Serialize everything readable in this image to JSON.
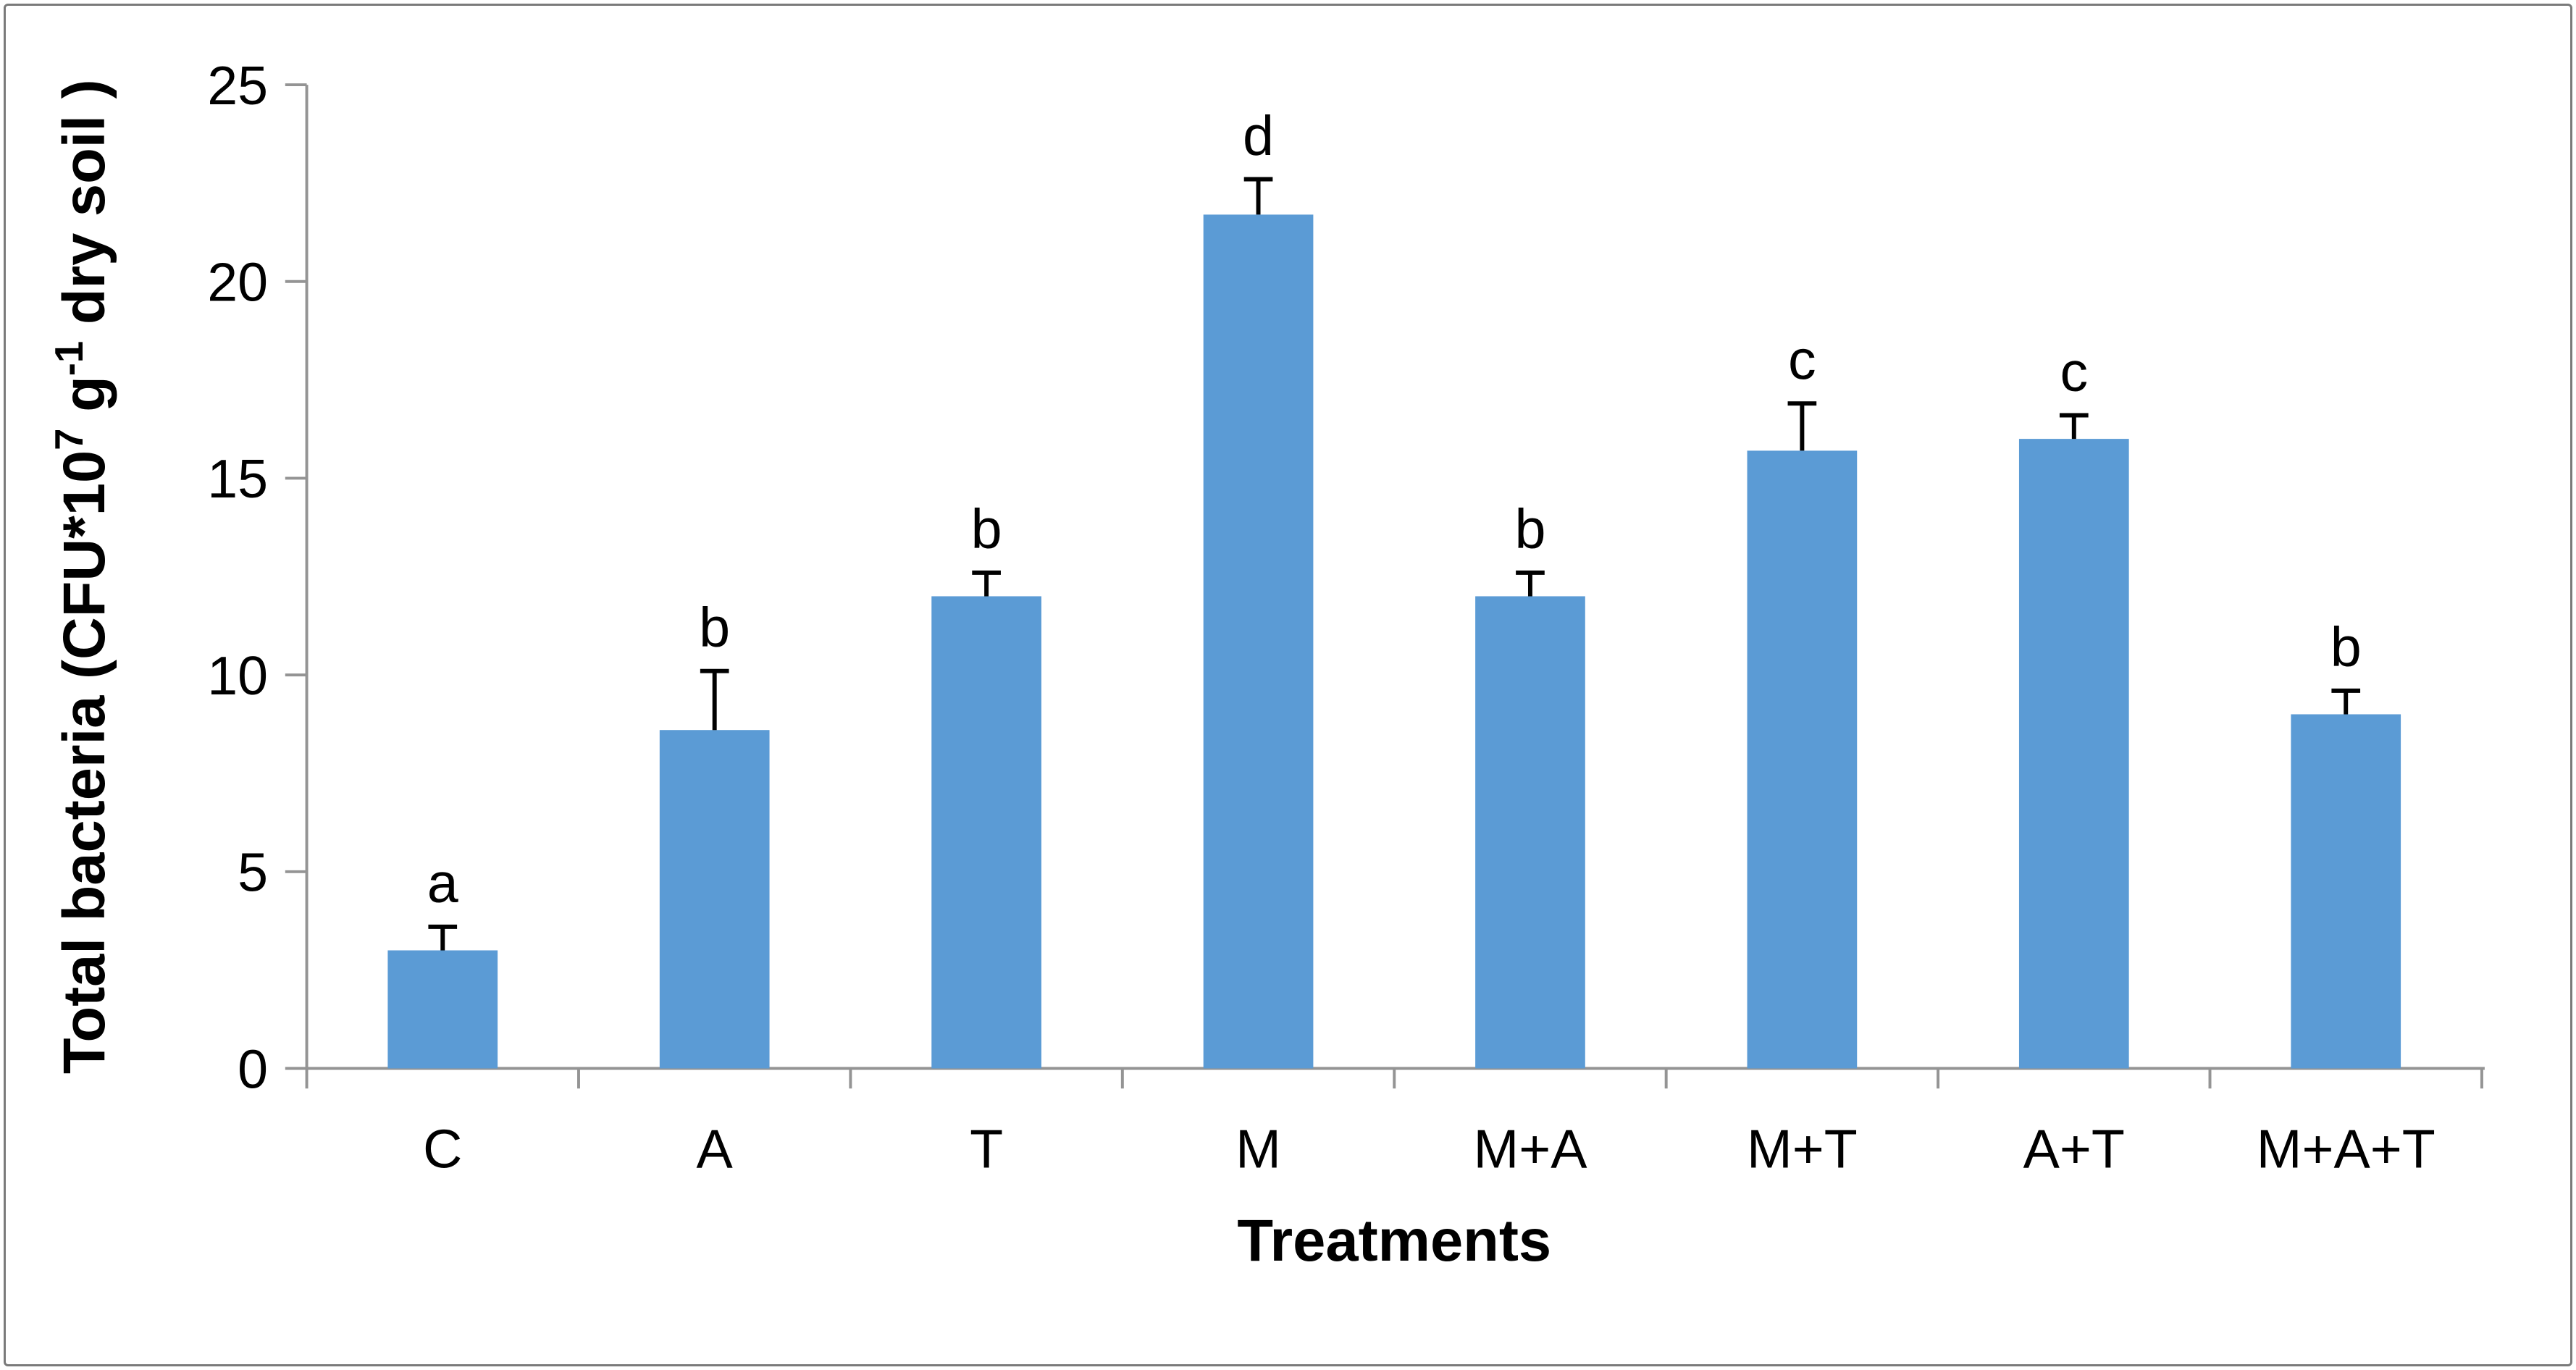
{
  "figure": {
    "background": "#ffffff",
    "border_color": "#7a7a7a"
  },
  "chart_data": {
    "type": "bar",
    "title": "",
    "categories": [
      "C",
      "A",
      "T",
      "M",
      "M+A",
      "M+T",
      "A+T",
      "M+A+T"
    ],
    "values": [
      3.0,
      8.6,
      12.0,
      21.7,
      12.0,
      15.7,
      16.0,
      9.0
    ],
    "errors_plus": [
      0.6,
      1.5,
      0.6,
      0.9,
      0.6,
      1.2,
      0.6,
      0.6
    ],
    "sig_letters": [
      "a",
      "b",
      "b",
      "d",
      "b",
      "c",
      "c",
      "b"
    ],
    "xlabel": "Treatments",
    "ylabel": "Total bacteria (CFU*10⁷ g⁻¹ dry soil )",
    "ylabel_parts": [
      {
        "t": "Total bacteria (CFU*10",
        "sup": false
      },
      {
        "t": "7",
        "sup": true
      },
      {
        "t": " g",
        "sup": false
      },
      {
        "t": "-1",
        "sup": true
      },
      {
        "t": " dry soil )",
        "sup": false
      }
    ],
    "ylim": [
      0,
      25
    ],
    "yticks": [
      0,
      5,
      10,
      15,
      20,
      25
    ],
    "grid": false,
    "legend": null,
    "bar_color": "#5B9BD5",
    "axis_color": "#949494",
    "error_color": "#000000",
    "text_color": "#000000"
  }
}
